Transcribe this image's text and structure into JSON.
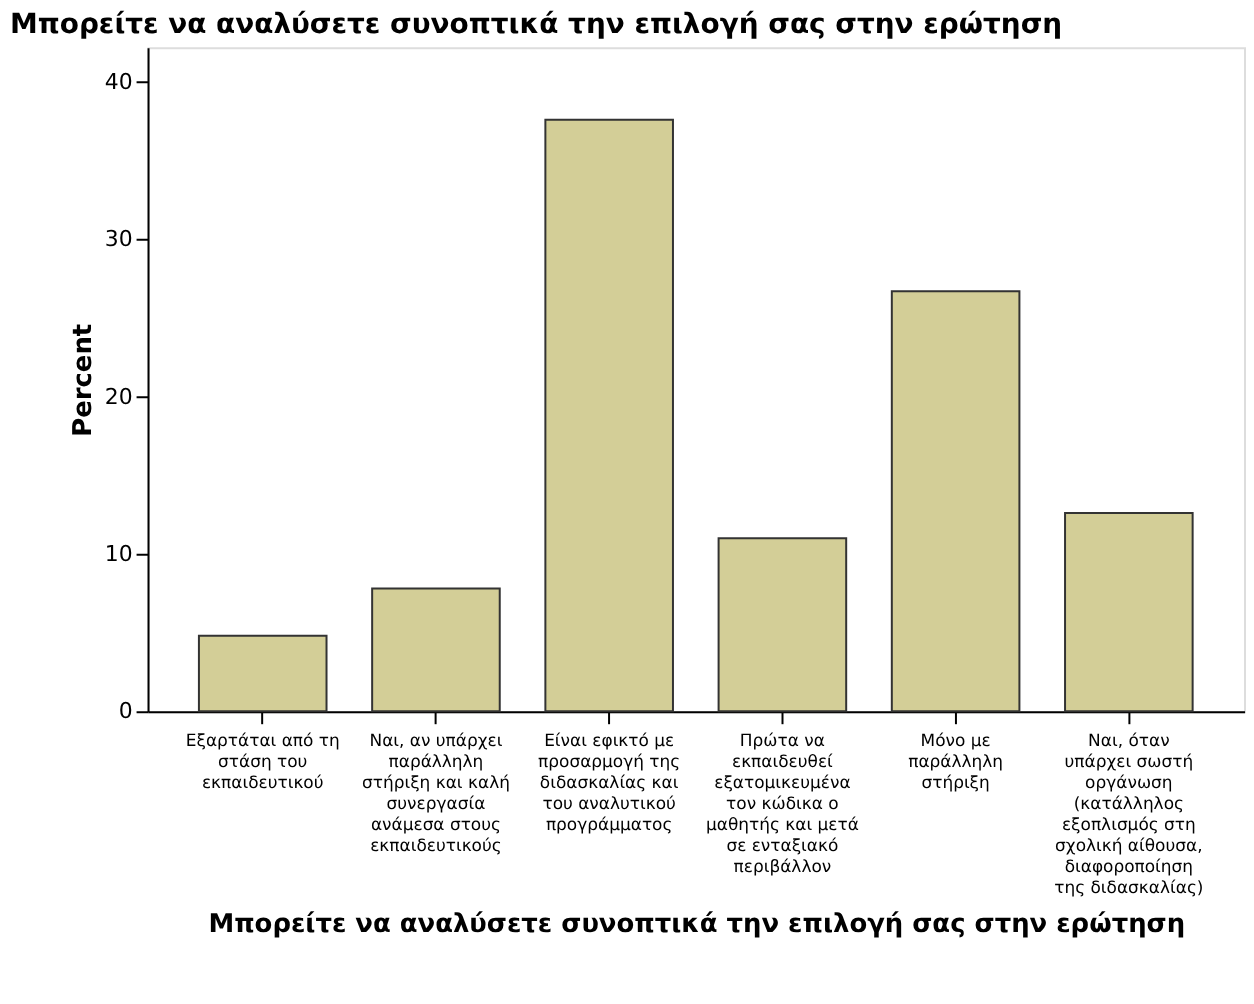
{
  "chart_data": {
    "type": "bar",
    "title": "Μπορείτε να αναλύσετε συνοπτικά την επιλογή σας στην ερώτηση",
    "xlabel": "Μπορείτε να αναλύσετε συνοπτικά την επιλογή σας στην ερώτηση",
    "ylabel": "Percent",
    "categories": [
      "Εξαρτάται από τη στάση του εκπαιδευτικού",
      "Ναι, αν υπάρχει παράλληλη στήριξη και καλή συνεργασία ανάμεσα στους εκπαιδευτικούς",
      "Είναι εφικτό με προσαρμογή της διδασκαλίας και του αναλυτικού προγράμματος",
      "Πρώτα να εκπαιδευθεί εξατομικευμένα τον κώδικα ο μαθητής και μετά σε ενταξιακό περιβάλλον",
      "Μόνο με παράλληλη στήριξη",
      "Ναι, όταν υπάρχει σωστή οργάνωση (κατάλληλος εξοπλισμός στη σχολική αίθουσα, διαφοροποίηση της διδασκαλίας)"
    ],
    "values": [
      4.8,
      7.8,
      37.6,
      11.0,
      26.7,
      12.6
    ],
    "color": "#d3ce97",
    "ylim": [
      0,
      42.2
    ],
    "yticks": [
      0,
      10,
      20,
      30,
      40
    ],
    "grid": false
  }
}
